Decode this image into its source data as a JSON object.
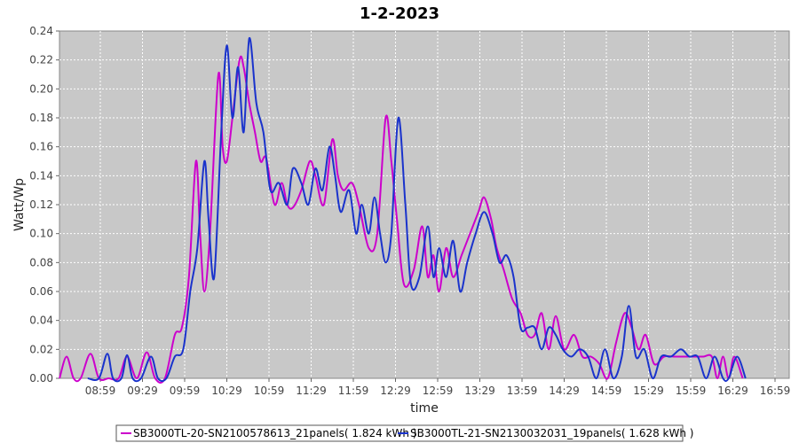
{
  "chart_data": {
    "type": "line",
    "title": "1-2-2023",
    "xlabel": "time",
    "ylabel": "Watt/Wp",
    "ylim": [
      0,
      0.24
    ],
    "yticks": [
      "0.00",
      "0.02",
      "0.04",
      "0.06",
      "0.08",
      "0.10",
      "0.12",
      "0.14",
      "0.16",
      "0.18",
      "0.20",
      "0.22",
      "0.24"
    ],
    "xticks": [
      "08:59",
      "09:29",
      "09:59",
      "10:29",
      "10:59",
      "11:29",
      "11:59",
      "12:29",
      "12:59",
      "13:29",
      "13:59",
      "14:29",
      "14:59",
      "15:29",
      "15:59",
      "16:29",
      "16:59"
    ],
    "grid": true,
    "legend": "bottom",
    "series": [
      {
        "name": "SB3000TL-20-SN2100578613_21panels( 1.824 kWh )",
        "color": "#cc00cc",
        "points": [
          [
            "08:30",
            0.0
          ],
          [
            "08:35",
            0.015
          ],
          [
            "08:40",
            0.0
          ],
          [
            "08:45",
            0.0
          ],
          [
            "08:52",
            0.017
          ],
          [
            "08:58",
            0.0
          ],
          [
            "09:05",
            0.0
          ],
          [
            "09:12",
            0.0
          ],
          [
            "09:18",
            0.015
          ],
          [
            "09:25",
            0.0
          ],
          [
            "09:32",
            0.018
          ],
          [
            "09:38",
            0.0
          ],
          [
            "09:45",
            0.0
          ],
          [
            "09:52",
            0.03
          ],
          [
            "09:57",
            0.035
          ],
          [
            "10:02",
            0.07
          ],
          [
            "10:07",
            0.15
          ],
          [
            "10:10",
            0.1
          ],
          [
            "10:13",
            0.06
          ],
          [
            "10:17",
            0.1
          ],
          [
            "10:23",
            0.21
          ],
          [
            "10:26",
            0.16
          ],
          [
            "10:29",
            0.15
          ],
          [
            "10:33",
            0.18
          ],
          [
            "10:38",
            0.22
          ],
          [
            "10:41",
            0.215
          ],
          [
            "10:45",
            0.19
          ],
          [
            "10:49",
            0.17
          ],
          [
            "10:53",
            0.15
          ],
          [
            "10:57",
            0.152
          ],
          [
            "11:03",
            0.12
          ],
          [
            "11:08",
            0.135
          ],
          [
            "11:12",
            0.12
          ],
          [
            "11:16",
            0.118
          ],
          [
            "11:22",
            0.13
          ],
          [
            "11:28",
            0.15
          ],
          [
            "11:32",
            0.14
          ],
          [
            "11:38",
            0.12
          ],
          [
            "11:44",
            0.165
          ],
          [
            "11:48",
            0.14
          ],
          [
            "11:52",
            0.13
          ],
          [
            "11:58",
            0.135
          ],
          [
            "12:03",
            0.12
          ],
          [
            "12:10",
            0.09
          ],
          [
            "12:16",
            0.1
          ],
          [
            "12:22",
            0.18
          ],
          [
            "12:26",
            0.15
          ],
          [
            "12:30",
            0.11
          ],
          [
            "12:35",
            0.065
          ],
          [
            "12:42",
            0.075
          ],
          [
            "12:48",
            0.105
          ],
          [
            "12:52",
            0.07
          ],
          [
            "12:56",
            0.085
          ],
          [
            "13:00",
            0.06
          ],
          [
            "13:05",
            0.09
          ],
          [
            "13:10",
            0.07
          ],
          [
            "13:16",
            0.085
          ],
          [
            "13:22",
            0.1
          ],
          [
            "13:28",
            0.115
          ],
          [
            "13:32",
            0.125
          ],
          [
            "13:37",
            0.11
          ],
          [
            "13:41",
            0.09
          ],
          [
            "13:46",
            0.075
          ],
          [
            "13:52",
            0.055
          ],
          [
            "13:58",
            0.045
          ],
          [
            "14:03",
            0.03
          ],
          [
            "14:08",
            0.03
          ],
          [
            "14:13",
            0.045
          ],
          [
            "14:18",
            0.02
          ],
          [
            "14:23",
            0.043
          ],
          [
            "14:29",
            0.02
          ],
          [
            "14:36",
            0.03
          ],
          [
            "14:42",
            0.015
          ],
          [
            "14:48",
            0.015
          ],
          [
            "14:54",
            0.01
          ],
          [
            "15:00",
            0.0
          ],
          [
            "15:06",
            0.025
          ],
          [
            "15:12",
            0.045
          ],
          [
            "15:17",
            0.035
          ],
          [
            "15:22",
            0.02
          ],
          [
            "15:27",
            0.03
          ],
          [
            "15:33",
            0.01
          ],
          [
            "15:40",
            0.015
          ],
          [
            "15:48",
            0.015
          ],
          [
            "15:55",
            0.015
          ],
          [
            "16:02",
            0.015
          ],
          [
            "16:08",
            0.015
          ],
          [
            "16:14",
            0.015
          ],
          [
            "16:18",
            0.0
          ],
          [
            "16:22",
            0.015
          ],
          [
            "16:26",
            0.0
          ],
          [
            "16:30",
            0.015
          ],
          [
            "16:36",
            0.0
          ]
        ]
      },
      {
        "name": "SB3000TL-21-SN2130032031_19panels( 1.628 kWh )",
        "color": "#1a33cc",
        "points": [
          [
            "08:50",
            0.0
          ],
          [
            "08:58",
            0.0
          ],
          [
            "09:04",
            0.017
          ],
          [
            "09:08",
            0.0
          ],
          [
            "09:14",
            0.0
          ],
          [
            "09:18",
            0.016
          ],
          [
            "09:22",
            0.0
          ],
          [
            "09:28",
            0.0
          ],
          [
            "09:35",
            0.015
          ],
          [
            "09:40",
            0.0
          ],
          [
            "09:46",
            0.0
          ],
          [
            "09:52",
            0.015
          ],
          [
            "09:58",
            0.02
          ],
          [
            "10:03",
            0.06
          ],
          [
            "10:08",
            0.09
          ],
          [
            "10:13",
            0.15
          ],
          [
            "10:16",
            0.11
          ],
          [
            "10:20",
            0.07
          ],
          [
            "10:25",
            0.17
          ],
          [
            "10:29",
            0.23
          ],
          [
            "10:33",
            0.18
          ],
          [
            "10:37",
            0.215
          ],
          [
            "10:41",
            0.17
          ],
          [
            "10:45",
            0.235
          ],
          [
            "10:50",
            0.19
          ],
          [
            "10:55",
            0.17
          ],
          [
            "11:00",
            0.13
          ],
          [
            "11:06",
            0.135
          ],
          [
            "11:12",
            0.12
          ],
          [
            "11:16",
            0.145
          ],
          [
            "11:22",
            0.135
          ],
          [
            "11:27",
            0.12
          ],
          [
            "11:32",
            0.145
          ],
          [
            "11:37",
            0.13
          ],
          [
            "11:42",
            0.16
          ],
          [
            "11:46",
            0.14
          ],
          [
            "11:50",
            0.115
          ],
          [
            "11:56",
            0.13
          ],
          [
            "12:01",
            0.1
          ],
          [
            "12:05",
            0.12
          ],
          [
            "12:10",
            0.1
          ],
          [
            "12:14",
            0.125
          ],
          [
            "12:18",
            0.1
          ],
          [
            "12:22",
            0.08
          ],
          [
            "12:26",
            0.1
          ],
          [
            "12:31",
            0.18
          ],
          [
            "12:36",
            0.12
          ],
          [
            "12:40",
            0.065
          ],
          [
            "12:46",
            0.07
          ],
          [
            "12:52",
            0.105
          ],
          [
            "12:56",
            0.07
          ],
          [
            "13:00",
            0.09
          ],
          [
            "13:05",
            0.07
          ],
          [
            "13:10",
            0.095
          ],
          [
            "13:15",
            0.06
          ],
          [
            "13:20",
            0.08
          ],
          [
            "13:26",
            0.1
          ],
          [
            "13:32",
            0.115
          ],
          [
            "13:38",
            0.1
          ],
          [
            "13:43",
            0.08
          ],
          [
            "13:48",
            0.085
          ],
          [
            "13:53",
            0.07
          ],
          [
            "13:58",
            0.035
          ],
          [
            "14:03",
            0.035
          ],
          [
            "14:08",
            0.035
          ],
          [
            "14:13",
            0.02
          ],
          [
            "14:18",
            0.035
          ],
          [
            "14:23",
            0.03
          ],
          [
            "14:28",
            0.02
          ],
          [
            "14:34",
            0.015
          ],
          [
            "14:40",
            0.02
          ],
          [
            "14:46",
            0.015
          ],
          [
            "14:52",
            0.0
          ],
          [
            "14:58",
            0.02
          ],
          [
            "15:04",
            0.0
          ],
          [
            "15:10",
            0.015
          ],
          [
            "15:15",
            0.05
          ],
          [
            "15:20",
            0.015
          ],
          [
            "15:26",
            0.02
          ],
          [
            "15:32",
            0.0
          ],
          [
            "15:38",
            0.015
          ],
          [
            "15:45",
            0.015
          ],
          [
            "15:52",
            0.02
          ],
          [
            "15:58",
            0.015
          ],
          [
            "16:04",
            0.015
          ],
          [
            "16:10",
            0.0
          ],
          [
            "16:16",
            0.015
          ],
          [
            "16:22",
            0.0
          ],
          [
            "16:26",
            0.0
          ],
          [
            "16:32",
            0.015
          ],
          [
            "16:38",
            0.0
          ]
        ]
      }
    ]
  }
}
